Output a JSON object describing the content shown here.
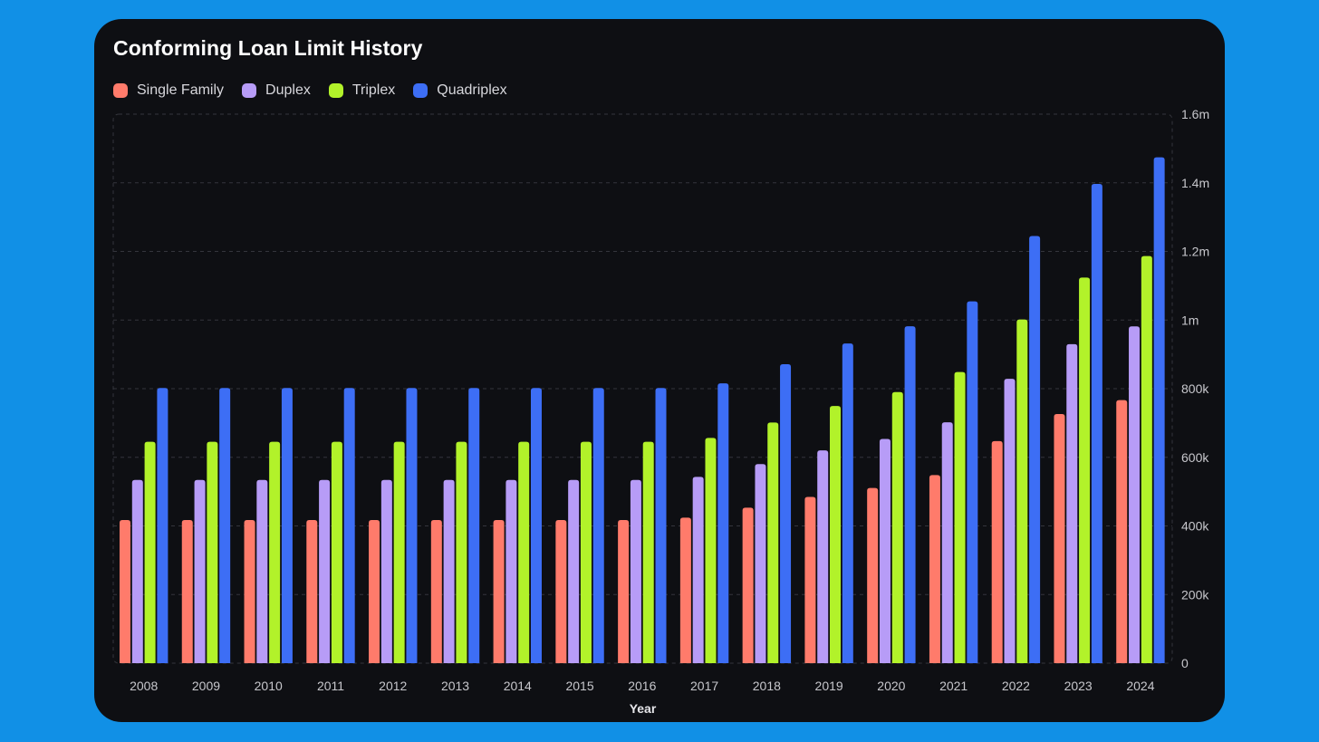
{
  "chart_data": {
    "type": "bar",
    "title": "Conforming Loan Limit History",
    "xlabel": "Year",
    "ylabel": "",
    "ylim": [
      0,
      1600000
    ],
    "y_ticks": [
      0,
      200000,
      400000,
      600000,
      800000,
      1000000,
      1200000,
      1400000,
      1600000
    ],
    "y_tick_labels": [
      "0",
      "200k",
      "400k",
      "600k",
      "800k",
      "1m",
      "1.2m",
      "1.4m",
      "1.6m"
    ],
    "y_axis_position": "right",
    "grid": true,
    "legend": "top-left",
    "categories": [
      "2008",
      "2009",
      "2010",
      "2011",
      "2012",
      "2013",
      "2014",
      "2015",
      "2016",
      "2017",
      "2018",
      "2019",
      "2020",
      "2021",
      "2022",
      "2023",
      "2024"
    ],
    "series": [
      {
        "name": "Single Family",
        "color": "#ff7b6b",
        "values": [
          417000,
          417000,
          417000,
          417000,
          417000,
          417000,
          417000,
          417000,
          417000,
          424100,
          453100,
          484350,
          510400,
          548250,
          647200,
          726200,
          766550
        ]
      },
      {
        "name": "Duplex",
        "color": "#b79cf7",
        "values": [
          533850,
          533850,
          533850,
          533850,
          533850,
          533850,
          533850,
          533850,
          533850,
          543000,
          580150,
          620200,
          653550,
          702000,
          828700,
          929850,
          981500
        ]
      },
      {
        "name": "Triplex",
        "color": "#b2f22a",
        "values": [
          645300,
          645300,
          645300,
          645300,
          645300,
          645300,
          645300,
          645300,
          645300,
          656350,
          701250,
          749650,
          789950,
          848500,
          1001650,
          1123900,
          1186350
        ]
      },
      {
        "name": "Quadriplex",
        "color": "#3d6ef5",
        "values": [
          801950,
          801950,
          801950,
          801950,
          801950,
          801950,
          801950,
          801950,
          801950,
          815650,
          871450,
          931600,
          981700,
          1054500,
          1244850,
          1396800,
          1474400
        ]
      }
    ]
  }
}
